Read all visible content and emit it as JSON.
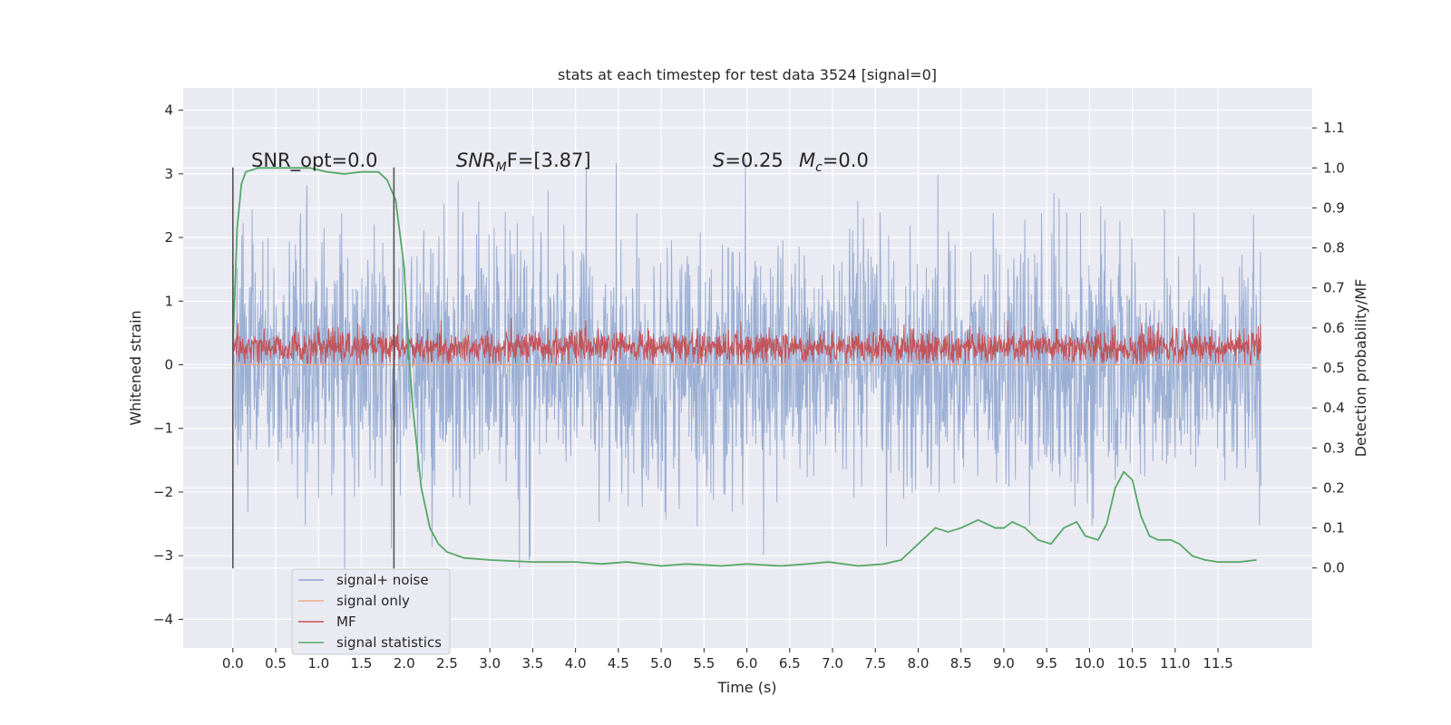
{
  "chart_data": {
    "type": "line",
    "title": "stats at each timestep for test data 3524 [signal=0]",
    "xlabel": "Time (s)",
    "ylabel_left": "Whitened strain",
    "ylabel_right": "Detection probability/MF",
    "xlim": [
      -0.58,
      12.6
    ],
    "ylim_left": [
      -4.45,
      4.35
    ],
    "ylim_right": [
      -0.2,
      1.2
    ],
    "x_ticks": [
      "0.0",
      "0.5",
      "1.0",
      "1.5",
      "2.0",
      "2.5",
      "3.0",
      "3.5",
      "4.0",
      "4.5",
      "5.0",
      "5.5",
      "6.0",
      "6.5",
      "7.0",
      "7.5",
      "8.0",
      "8.5",
      "9.0",
      "9.5",
      "10.0",
      "10.5",
      "11.0",
      "11.5"
    ],
    "y_ticks_left": [
      "−4",
      "−3",
      "−2",
      "−1",
      "0",
      "1",
      "2",
      "3",
      "4"
    ],
    "y_ticks_right": [
      "0.0",
      "0.1",
      "0.2",
      "0.3",
      "0.4",
      "0.5",
      "0.6",
      "0.7",
      "0.8",
      "0.9",
      "1.0",
      "1.1"
    ],
    "grid": true,
    "legend_position": "lower-left",
    "series": [
      {
        "name": "signal+ noise",
        "color": "#8da4cf",
        "axis": "left",
        "style": "dense-noise",
        "x_range": [
          0.0,
          12.0
        ],
        "approx_band": [
          -2.5,
          2.5
        ]
      },
      {
        "name": "signal only",
        "color": "#e9a98a",
        "axis": "left",
        "style": "flat",
        "values": [
          0.0
        ]
      },
      {
        "name": "MF",
        "color": "#c44e52",
        "axis": "left",
        "style": "dense-noise",
        "x_range": [
          0.0,
          12.0
        ],
        "approx_band": [
          0.0,
          0.6
        ]
      },
      {
        "name": "signal statistics",
        "color": "#55a868",
        "axis": "right",
        "x": [
          0.0,
          0.05,
          0.1,
          0.15,
          0.3,
          0.6,
          0.9,
          1.1,
          1.3,
          1.5,
          1.7,
          1.8,
          1.9,
          2.0,
          2.05,
          2.1,
          2.15,
          2.2,
          2.3,
          2.4,
          2.5,
          2.7,
          3.0,
          3.5,
          4.0,
          4.3,
          4.6,
          5.0,
          5.3,
          5.7,
          6.0,
          6.4,
          6.7,
          6.95,
          7.3,
          7.6,
          7.8,
          8.0,
          8.2,
          8.35,
          8.5,
          8.7,
          8.9,
          9.0,
          9.1,
          9.25,
          9.4,
          9.55,
          9.7,
          9.85,
          9.95,
          10.1,
          10.2,
          10.3,
          10.4,
          10.5,
          10.6,
          10.7,
          10.8,
          10.95,
          11.05,
          11.2,
          11.35,
          11.5,
          11.75,
          11.95
        ],
        "y": [
          0.55,
          0.85,
          0.96,
          0.99,
          1.0,
          1.0,
          1.0,
          0.99,
          0.985,
          0.99,
          0.99,
          0.97,
          0.92,
          0.75,
          0.55,
          0.4,
          0.3,
          0.2,
          0.1,
          0.06,
          0.04,
          0.025,
          0.02,
          0.015,
          0.015,
          0.01,
          0.015,
          0.005,
          0.01,
          0.005,
          0.01,
          0.005,
          0.01,
          0.015,
          0.005,
          0.01,
          0.02,
          0.06,
          0.1,
          0.09,
          0.1,
          0.12,
          0.1,
          0.1,
          0.115,
          0.1,
          0.07,
          0.06,
          0.1,
          0.115,
          0.08,
          0.07,
          0.11,
          0.2,
          0.24,
          0.22,
          0.13,
          0.08,
          0.07,
          0.07,
          0.06,
          0.03,
          0.02,
          0.015,
          0.015,
          0.02
        ]
      }
    ],
    "annotations": {
      "snr_opt": "SNR_opt=0.0",
      "snr_mf_base": "SNR",
      "snr_mf_sub": "M",
      "snr_mf_rest": "F=[3.87]",
      "s_label": "S",
      "s_value": "=0.25",
      "mc_label": "M",
      "mc_sub": "c",
      "mc_value": "=0.0"
    },
    "vertical_markers": [
      0.0,
      1.88
    ]
  }
}
